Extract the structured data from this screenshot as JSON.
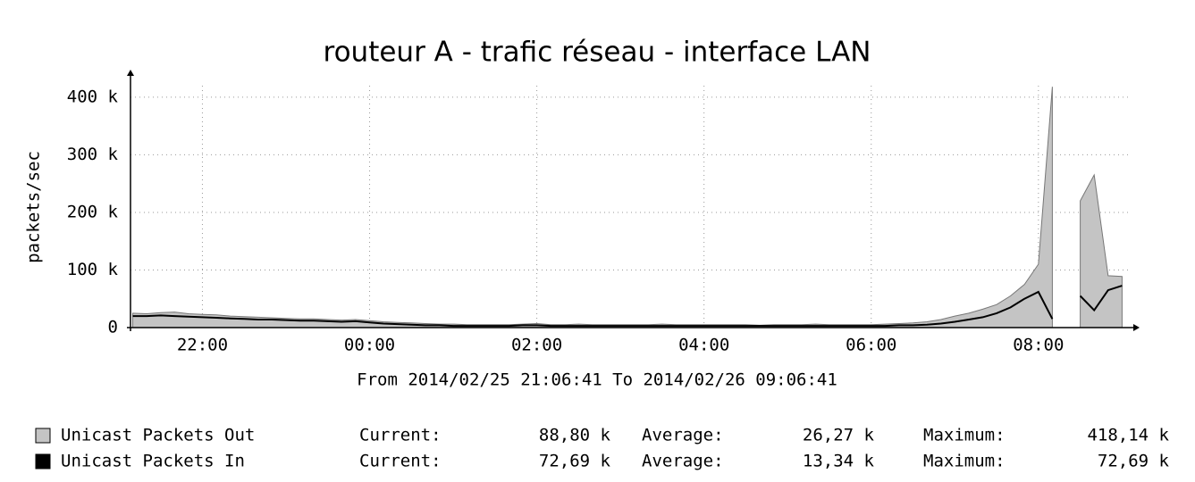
{
  "chart_data": {
    "type": "area",
    "title": "routeur A - trafic réseau - interface LAN",
    "subtitle": "From 2014/02/25 21:06:41 To 2014/02/26 09:06:41",
    "y_label": "packets/sec",
    "categories": [
      null,
      null,
      null,
      null,
      null,
      "22:00",
      null,
      null,
      null,
      null,
      null,
      null,
      null,
      null,
      null,
      null,
      null,
      "00:00",
      null,
      null,
      null,
      null,
      null,
      null,
      null,
      null,
      null,
      null,
      null,
      "02:00",
      null,
      null,
      null,
      null,
      null,
      null,
      null,
      null,
      null,
      null,
      null,
      "04:00",
      null,
      null,
      null,
      null,
      null,
      null,
      null,
      null,
      null,
      null,
      null,
      "06:00",
      null,
      null,
      null,
      null,
      null,
      null,
      null,
      null,
      null,
      null,
      null,
      "08:00",
      null,
      null,
      null,
      null,
      null,
      null
    ],
    "ylim": [
      0,
      420000
    ],
    "yticks": [
      0,
      {
        "value": 100000,
        "label": "100 k"
      },
      {
        "value": 200000,
        "label": "200 k"
      },
      {
        "value": 300000,
        "label": "300 k"
      },
      {
        "value": 400000,
        "label": "400 k"
      }
    ],
    "grid": true,
    "series": [
      {
        "name": "Unicast Packets Out",
        "color": "#c4c4c4",
        "draw": "area",
        "values": [
          25000,
          24000,
          26000,
          27000,
          24000,
          23000,
          22000,
          20000,
          19000,
          18000,
          17000,
          16000,
          15000,
          15000,
          14000,
          13000,
          14000,
          12000,
          10000,
          9000,
          8000,
          7000,
          6000,
          6000,
          5000,
          5000,
          5000,
          5000,
          6000,
          7000,
          5000,
          5000,
          6000,
          5000,
          5000,
          5000,
          5000,
          5000,
          6000,
          5000,
          5000,
          5000,
          5000,
          5000,
          5000,
          4000,
          5000,
          5000,
          5000,
          6000,
          5000,
          5000,
          5000,
          5000,
          6000,
          7000,
          8000,
          10000,
          14000,
          20000,
          25000,
          32000,
          40000,
          55000,
          75000,
          110000,
          418140,
          null,
          220000,
          265000,
          90000,
          88800
        ],
        "stats": [
          {
            "label": "Current:",
            "value": "88,80 k"
          },
          {
            "label": "Average:",
            "value": "26,27 k"
          },
          {
            "label": "Maximum:",
            "value": "418,14 k"
          }
        ]
      },
      {
        "name": "Unicast Packets In",
        "color": "#000000",
        "draw": "line",
        "values": [
          20000,
          20000,
          21000,
          20000,
          19000,
          18000,
          17000,
          16000,
          15000,
          14000,
          14000,
          13000,
          12000,
          12000,
          11000,
          10000,
          11000,
          9000,
          7000,
          6000,
          5000,
          4000,
          4000,
          3000,
          3000,
          3000,
          3000,
          3000,
          4000,
          4000,
          3000,
          3000,
          3000,
          3000,
          3000,
          3000,
          3000,
          3000,
          3000,
          3000,
          3000,
          3000,
          3000,
          3000,
          3000,
          3000,
          3000,
          3000,
          3000,
          3000,
          3000,
          3000,
          3000,
          3000,
          3000,
          4000,
          4000,
          5000,
          7000,
          10000,
          14000,
          18000,
          25000,
          35000,
          50000,
          62000,
          15000,
          null,
          55000,
          30000,
          65000,
          72690
        ],
        "stats": [
          {
            "label": "Current:",
            "value": "72,69 k"
          },
          {
            "label": "Average:",
            "value": "13,34 k"
          },
          {
            "label": "Maximum:",
            "value": "72,69 k"
          }
        ]
      }
    ]
  }
}
